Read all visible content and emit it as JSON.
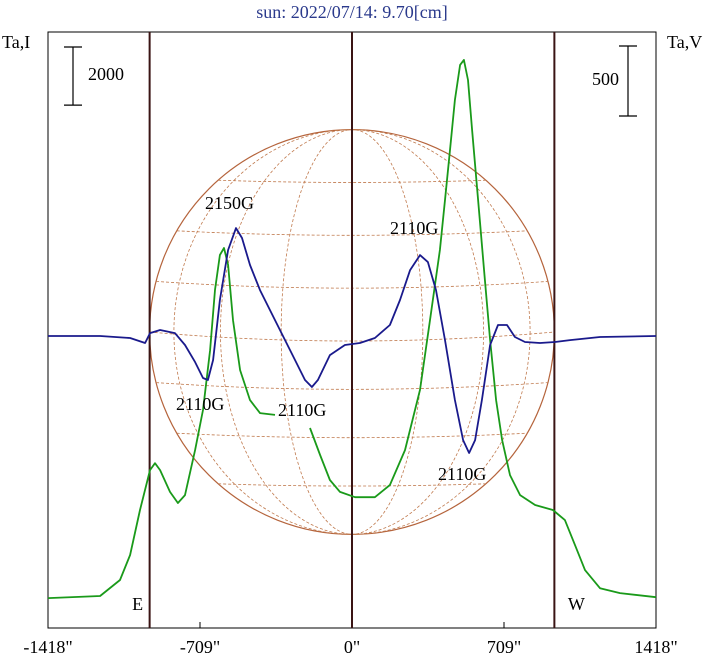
{
  "chart_data": {
    "type": "line",
    "title": "sun: 2022/07/14: 9.70[cm]",
    "ylabel": "Ta,I",
    "y2label": "Ta,V",
    "xlim": [
      -1418,
      1418
    ],
    "xticks": [
      {
        "value": -1418,
        "label": "-1418\""
      },
      {
        "value": -709,
        "label": "-709\""
      },
      {
        "value": 0,
        "label": "0\""
      },
      {
        "value": 709,
        "label": "709\""
      },
      {
        "value": 1418,
        "label": "1418\""
      }
    ],
    "ylim": [
      -1030,
      19470
    ],
    "y2lim": [
      -2085,
      2171
    ],
    "limb": 944,
    "limb_labels": [
      "E",
      "W"
    ],
    "scale_bars": [
      {
        "value": 2000,
        "axis": "y"
      },
      {
        "value": 500,
        "axis": "y2"
      }
    ],
    "annotations": [
      "2150G",
      "2110G",
      "2110G",
      "2110G",
      "2110G"
    ],
    "series": [
      {
        "color": "#1a9a1a",
        "axis": "y",
        "x": [
          -1418,
          -1175,
          -1082,
          -1035,
          -989,
          -942,
          -919,
          -895,
          -849,
          -812,
          -779,
          -732,
          -695,
          -662,
          -639,
          -616,
          -597,
          -578,
          -555,
          -522,
          -476,
          -429,
          -359,
          -300,
          -196,
          -149,
          -103,
          -56,
          14,
          107,
          177,
          247,
          317,
          364,
          410,
          434,
          457,
          480,
          504,
          522,
          541,
          560,
          588,
          620,
          644,
          672,
          700,
          737,
          784,
          854,
          937,
          993,
          1040,
          1087,
          1157,
          1250,
          1418
        ],
        "values": [
          0,
          70,
          620,
          1480,
          3030,
          4400,
          4640,
          4400,
          3650,
          3270,
          3540,
          5090,
          6470,
          8530,
          10600,
          11800,
          12040,
          11460,
          9560,
          7840,
          6810,
          6360,
          6300,
          null,
          5850,
          4920,
          4060,
          3650,
          3470,
          3470,
          3890,
          5090,
          7160,
          9560,
          11970,
          13690,
          15410,
          17130,
          18340,
          18510,
          17820,
          16100,
          13690,
          10940,
          8880,
          6810,
          5440,
          4230,
          3540,
          3200,
          3030,
          2680,
          1820,
          960,
          340,
          170,
          30
        ]
      },
      {
        "color": "#1a1a8c",
        "axis": "y2",
        "x": [
          -1418,
          -1175,
          -1035,
          -965,
          -942,
          -895,
          -826,
          -779,
          -732,
          -695,
          -672,
          -648,
          -616,
          -578,
          -541,
          -513,
          -476,
          -429,
          -359,
          -289,
          -219,
          -187,
          -159,
          -103,
          -33,
          37,
          107,
          177,
          224,
          271,
          317,
          354,
          392,
          434,
          480,
          518,
          546,
          574,
          606,
          644,
          681,
          723,
          760,
          807,
          877,
          947,
          1017,
          1157,
          1418
        ],
        "values": [
          0,
          0,
          -14,
          -50,
          21,
          43,
          21,
          -64,
          -186,
          -300,
          -314,
          -171,
          257,
          614,
          771,
          700,
          507,
          328,
          114,
          -100,
          -314,
          -364,
          -314,
          -136,
          -64,
          -50,
          -14,
          79,
          257,
          471,
          578,
          528,
          328,
          -29,
          -457,
          -743,
          -835,
          -743,
          -457,
          -64,
          79,
          79,
          -7,
          -43,
          -50,
          -43,
          -29,
          -7,
          0
        ]
      }
    ]
  }
}
